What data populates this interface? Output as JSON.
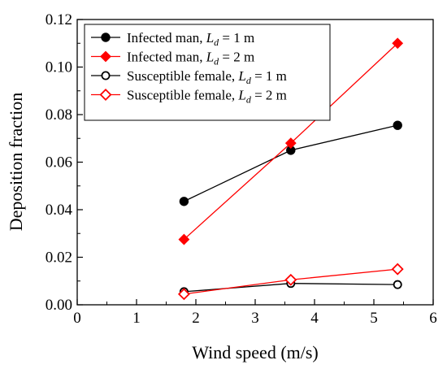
{
  "chart_data": {
    "type": "line",
    "xlabel": "Wind speed (m/s)",
    "ylabel": "Deposition fraction",
    "xlim": [
      0,
      6
    ],
    "ylim": [
      0,
      0.12
    ],
    "xticks": [
      "0",
      "1",
      "2",
      "3",
      "4",
      "5",
      "6"
    ],
    "yticks": [
      "0.00",
      "0.02",
      "0.04",
      "0.06",
      "0.08",
      "0.10",
      "0.12"
    ],
    "grid": false,
    "legend_position": "top-left",
    "x": [
      1.8,
      3.6,
      5.4
    ],
    "series": [
      {
        "name": "Infected man, L_d = 1 m",
        "legend": {
          "prefix": "Infected man, ",
          "var": "L",
          "sub": "d",
          "suffix": " = 1 m"
        },
        "values": [
          0.0435,
          0.065,
          0.0755
        ],
        "color": "#000000",
        "marker": "circle",
        "filled": true
      },
      {
        "name": "Infected man, L_d = 2 m",
        "legend": {
          "prefix": "Infected man, ",
          "var": "L",
          "sub": "d",
          "suffix": " = 2 m"
        },
        "values": [
          0.0275,
          0.068,
          0.11
        ],
        "color": "#ff0000",
        "marker": "diamond",
        "filled": true
      },
      {
        "name": "Susceptible female, L_d = 1 m",
        "legend": {
          "prefix": "Susceptible female, ",
          "var": "L",
          "sub": "d",
          "suffix": " = 1 m"
        },
        "values": [
          0.0055,
          0.009,
          0.0085
        ],
        "color": "#000000",
        "marker": "circle",
        "filled": false
      },
      {
        "name": "Susceptible female, L_d = 2 m",
        "legend": {
          "prefix": "Susceptible female, ",
          "var": "L",
          "sub": "d",
          "suffix": " = 2 m"
        },
        "values": [
          0.0045,
          0.0105,
          0.015
        ],
        "color": "#ff0000",
        "marker": "diamond",
        "filled": false
      }
    ]
  }
}
